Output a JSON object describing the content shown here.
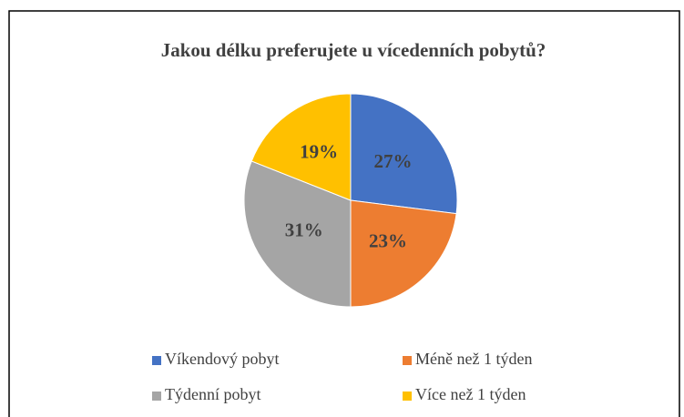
{
  "chart_data": {
    "type": "pie",
    "title": "Jakou délku preferujete u vícedenních pobytů?",
    "categories": [
      "Víkendový pobyt",
      "Méně než 1 týden",
      "Týdenní pobyt",
      "Více než 1 týden"
    ],
    "values": [
      27,
      23,
      31,
      19
    ],
    "value_labels": [
      "27%",
      "23%",
      "31%",
      "19%"
    ],
    "colors": [
      "#4472c4",
      "#ed7d31",
      "#a5a5a5",
      "#ffc000"
    ],
    "legend": "bottom"
  }
}
